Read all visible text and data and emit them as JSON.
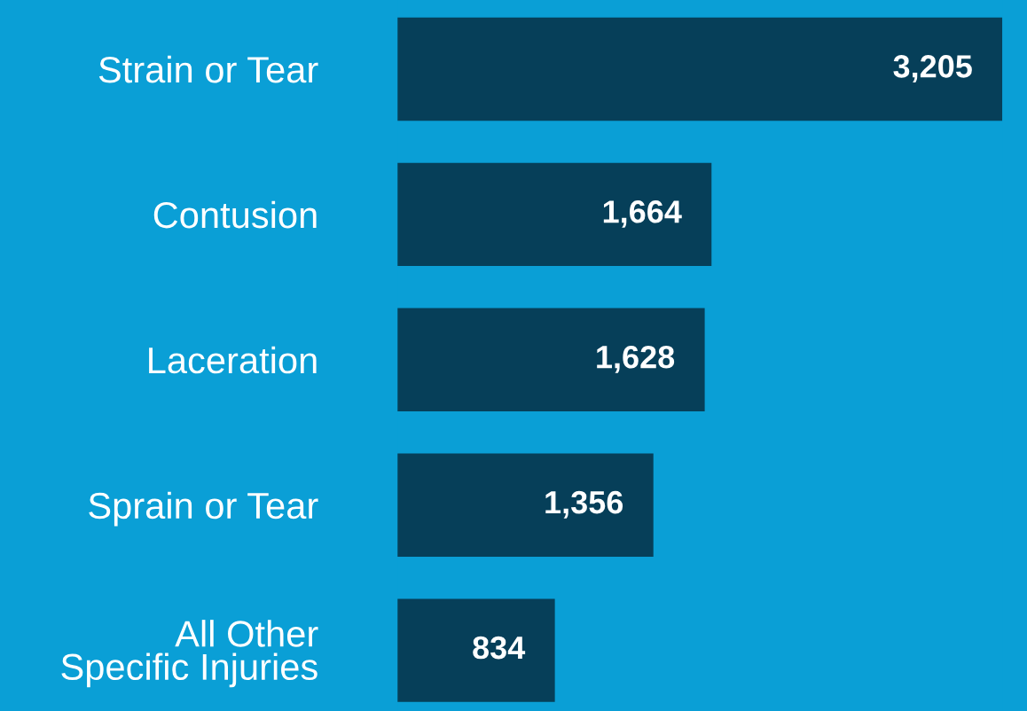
{
  "chart_data": {
    "type": "bar",
    "orientation": "horizontal",
    "categories": [
      "Strain or Tear",
      "Contusion",
      "Laceration",
      "Sprain or Tear",
      "All Other\nSpecific Injuries"
    ],
    "values": [
      3205,
      1664,
      1628,
      1356,
      834
    ],
    "color": "#063f59",
    "data_labels": true,
    "value_labels": [
      "3,205",
      "1,664",
      "1,628",
      "1,356",
      "834"
    ],
    "grid": false,
    "legend": false
  }
}
